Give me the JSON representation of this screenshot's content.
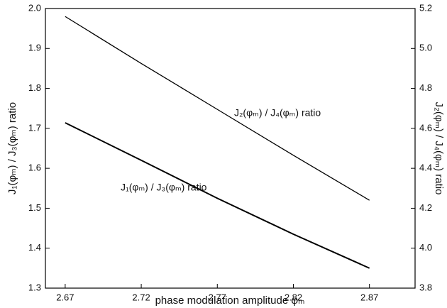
{
  "chart_data": {
    "type": "line",
    "x_label": "phase modulation amplitude φₘ",
    "y_label": "J₁(φₘ) / J₃(φₘ) ratio",
    "y2_label": "J₂(φₘ) / J₄(φₘ) ratio",
    "x": [
      2.67,
      2.72,
      2.77,
      2.82,
      2.87
    ],
    "series": [
      {
        "name": "J₁(φₘ) / J₃(φₘ) ratio",
        "color": "#000000",
        "values": [
          1.714,
          1.62,
          1.525,
          1.435,
          1.35
        ]
      },
      {
        "name": "J₂(φₘ) / J₄(φₘ) ratio",
        "color": "#000000",
        "axis": "y2",
        "values": [
          5.16,
          4.925,
          4.695,
          4.465,
          4.24
        ]
      }
    ],
    "xlim": [
      2.657,
      2.9
    ],
    "xticks": [
      2.67,
      2.72,
      2.77,
      2.82,
      2.87
    ],
    "ylim": [
      1.3,
      2.0
    ],
    "yticks": [
      1.3,
      1.4,
      1.5,
      1.6,
      1.7,
      1.8,
      1.9,
      {
        "value": 2,
        "label": "2.0"
      }
    ],
    "y2lim": [
      3.8,
      5.2
    ],
    "y2ticks": [
      3.8,
      {
        "value": 4,
        "label": "4.0"
      },
      4.2,
      4.4,
      4.6,
      4.8,
      {
        "value": 5,
        "label": "5.0"
      },
      5.2
    ],
    "grid": false
  }
}
